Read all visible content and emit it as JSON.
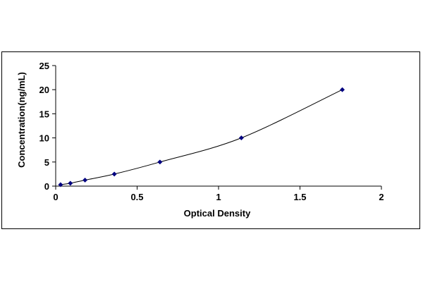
{
  "chart_data": {
    "type": "scatter",
    "title": "",
    "xlabel": "Optical Density",
    "ylabel": "Concentration(ng/mL)",
    "xlim": [
      0,
      2
    ],
    "ylim": [
      0,
      25
    ],
    "xticks": [
      0,
      0.5,
      1,
      1.5,
      2
    ],
    "xtick_labels": [
      "0",
      "0.5",
      "1",
      "1.5",
      "2"
    ],
    "yticks": [
      0,
      5,
      10,
      15,
      20,
      25
    ],
    "ytick_labels": [
      "0",
      "5",
      "10",
      "15",
      "20",
      "25"
    ],
    "grid": false,
    "legend": "none",
    "series": [
      {
        "x": [
          0.03,
          0.09,
          0.18,
          0.36,
          0.64,
          1.14,
          1.76
        ],
        "y": [
          0.3,
          0.6,
          1.25,
          2.5,
          5,
          10,
          20
        ],
        "marker": "diamond",
        "trendline": "curve",
        "color": "#000080"
      }
    ]
  }
}
